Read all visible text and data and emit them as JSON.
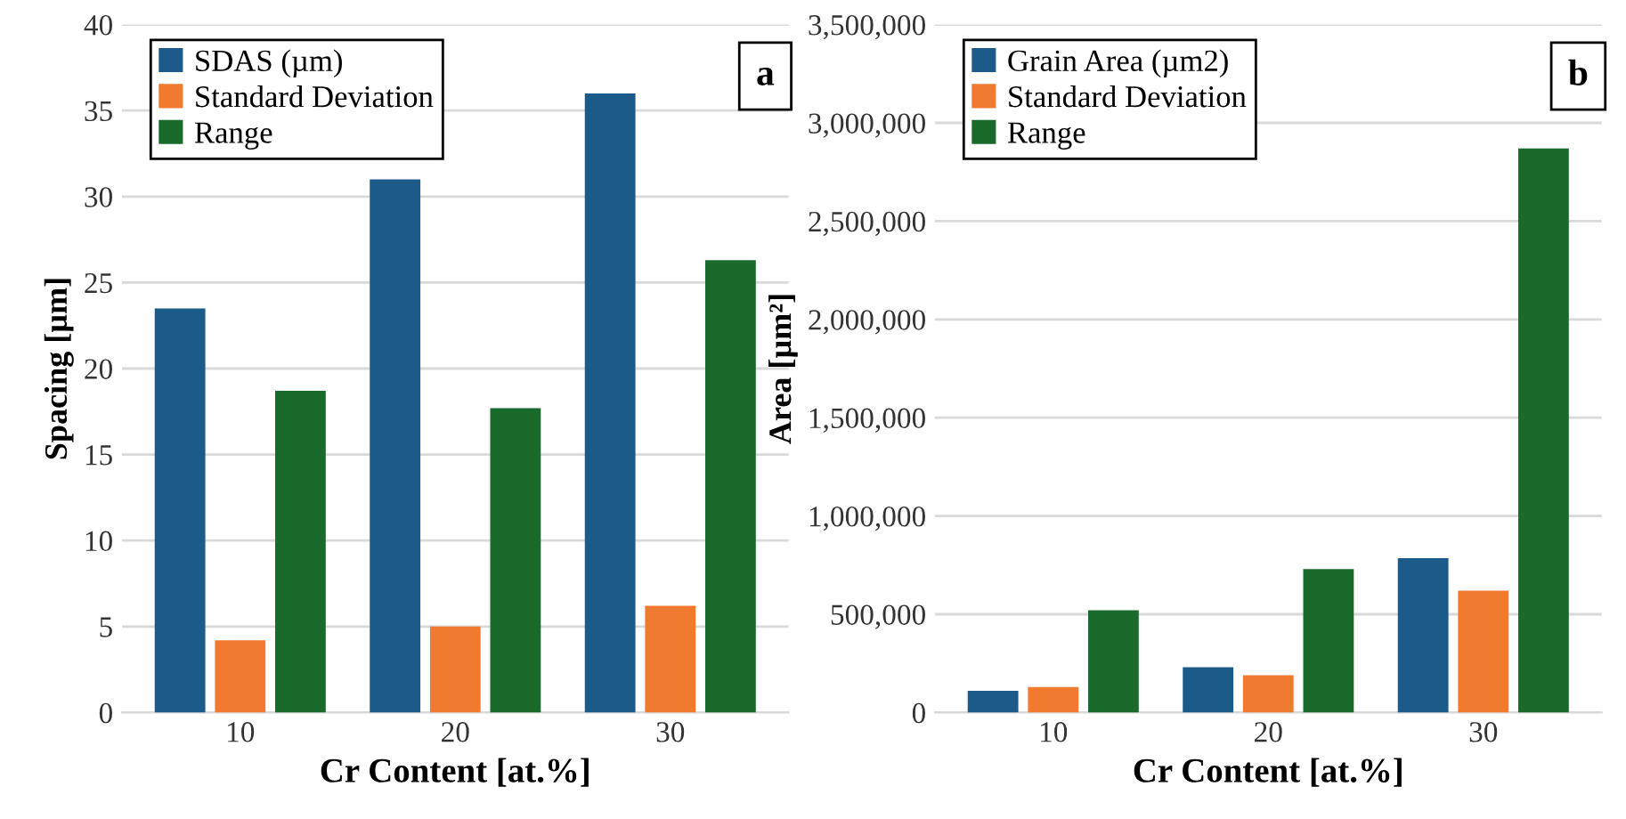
{
  "chart_data": [
    {
      "type": "bar",
      "categories": [
        "10",
        "20",
        "30"
      ],
      "xlabel": "Cr Content [at.%]",
      "ylabel": "Spacing [µm]",
      "ylim": [
        0,
        40
      ],
      "yticks": [
        0,
        5,
        10,
        15,
        20,
        25,
        30,
        35,
        40
      ],
      "grid": "y",
      "legend": "top left",
      "annotations": [
        "a"
      ],
      "series": [
        {
          "name": "SDAS (µm)",
          "color": "#1c5a8a",
          "values": [
            23.5,
            31,
            36
          ]
        },
        {
          "name": "Standard Deviation",
          "color": "#f07a30",
          "values": [
            4.2,
            5,
            6.2
          ]
        },
        {
          "name": "Range",
          "color": "#1a6a2c",
          "values": [
            18.7,
            17.7,
            26.3
          ]
        }
      ]
    },
    {
      "type": "bar",
      "categories": [
        "10",
        "20",
        "30"
      ],
      "xlabel": "Cr Content [at.%]",
      "ylabel": "Area [µm²]",
      "ylim": [
        0,
        3500000
      ],
      "yticks": [
        {
          "value": 0,
          "label": "0"
        },
        {
          "value": 500000,
          "label": "500,000"
        },
        {
          "value": 1000000,
          "label": "1,000,000"
        },
        {
          "value": 1500000,
          "label": "1,500,000"
        },
        {
          "value": 2000000,
          "label": "2,000,000"
        },
        {
          "value": 2500000,
          "label": "2,500,000"
        },
        {
          "value": 3000000,
          "label": "3,000,000"
        },
        {
          "value": 3500000,
          "label": "3,500,000"
        }
      ],
      "grid": "y",
      "legend": "top left",
      "annotations": [
        "b"
      ],
      "series": [
        {
          "name": "Grain Area (µm2)",
          "color": "#1c5a8a",
          "values": [
            110000,
            230000,
            785000
          ]
        },
        {
          "name": "Standard Deviation",
          "color": "#f07a30",
          "values": [
            130000,
            190000,
            620000
          ]
        },
        {
          "name": "Range",
          "color": "#1a6a2c",
          "values": [
            520000,
            730000,
            2870000
          ]
        }
      ]
    }
  ]
}
